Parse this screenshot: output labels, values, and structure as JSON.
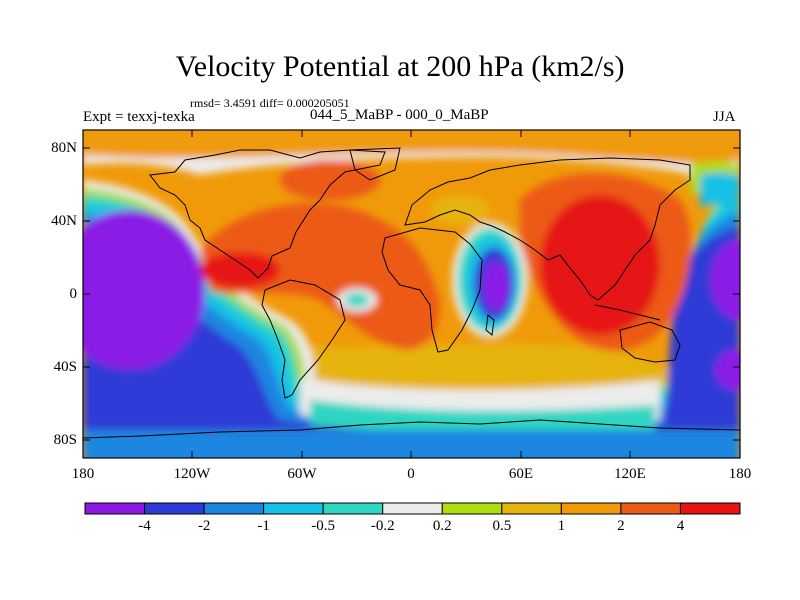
{
  "figure": {
    "title": "Velocity Potential at 200 hPa (km2/s)",
    "stats_line": "rmsd= 3.4591 diff= 0.000205051",
    "left_label": "Expt = texxj-texka",
    "center_label": "044_5_MaBP - 000_0_MaBP",
    "right_label": "JJA"
  },
  "map": {
    "projection": "cylindrical equidistant",
    "lon_range": [
      -180,
      180
    ],
    "lat_range": [
      -90,
      90
    ],
    "lat_ticks": [
      "80N",
      "40N",
      "0",
      "40S",
      "80S"
    ],
    "lon_ticks": [
      "180",
      "120W",
      "60W",
      "0",
      "60E",
      "120E",
      "180"
    ],
    "field": "velocity potential difference at 200 hPa",
    "season": "JJA"
  },
  "colorbar": {
    "boundaries": [
      "-4",
      "-2",
      "-1",
      "-0.5",
      "-0.2",
      "0.2",
      "0.5",
      "1",
      "2",
      "4"
    ],
    "colors": [
      "#8b1ae6",
      "#2d3bd6",
      "#1a86e0",
      "#19c0e6",
      "#2fd6c2",
      "#ececec",
      "#b0dc12",
      "#e6b410",
      "#f09a0a",
      "#ec5a16",
      "#e61414"
    ]
  },
  "palette": {
    "below_neg4": "#8b1ae6",
    "neg4_neg2": "#2d3bd6",
    "neg2_neg1": "#1a86e0",
    "neg1_neg05": "#19c0e6",
    "neg05_neg02": "#2fd6c2",
    "neg02_02": "#ececec",
    "p02_05": "#b0dc12",
    "p05_1": "#e6b410",
    "p1_2": "#f09a0a",
    "p2_4": "#ec5a16",
    "above4": "#e61414"
  }
}
